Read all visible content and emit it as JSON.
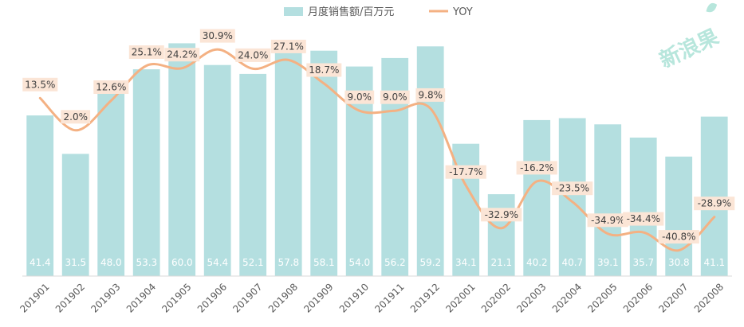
{
  "chart_data": {
    "type": "bar",
    "categories": [
      "201901",
      "201902",
      "201903",
      "201904",
      "201905",
      "201906",
      "201907",
      "201908",
      "201909",
      "201910",
      "201911",
      "201912",
      "202001",
      "202002",
      "202003",
      "202004",
      "202005",
      "202006",
      "202007",
      "202008"
    ],
    "series": [
      {
        "name": "月度销售额/百万元",
        "type": "bar",
        "axis": "left",
        "color": "#b4dfe0",
        "values": [
          41.4,
          31.5,
          48.0,
          53.3,
          60.0,
          54.4,
          52.1,
          57.8,
          58.1,
          54.0,
          56.2,
          59.2,
          34.1,
          21.1,
          40.2,
          40.7,
          39.1,
          35.7,
          30.8,
          41.1
        ],
        "labels": [
          "41.4",
          "31.5",
          "48.0",
          "53.3",
          "60.0",
          "54.4",
          "52.1",
          "57.8",
          "58.1",
          "54.0",
          "56.2",
          "59.2",
          "34.1",
          "21.1",
          "40.2",
          "40.7",
          "39.1",
          "35.7",
          "30.8",
          "41.1"
        ]
      },
      {
        "name": "YOY",
        "type": "line",
        "axis": "right",
        "color": "#f4b183",
        "values": [
          13.5,
          2.0,
          12.6,
          25.1,
          24.2,
          30.9,
          24.0,
          27.1,
          18.7,
          9.0,
          9.0,
          9.8,
          -17.7,
          -32.9,
          -16.2,
          -23.5,
          -34.9,
          -34.4,
          -40.8,
          -28.9
        ],
        "labels": [
          "13.5%",
          "2.0%",
          "12.6%",
          "25.1%",
          "24.2%",
          "30.9%",
          "24.0%",
          "27.1%",
          "18.7%",
          "9.0%",
          "9.0%",
          "9.8%",
          "-17.7%",
          "-32.9%",
          "-16.2%",
          "-23.5%",
          "-34.9%",
          "-34.4%",
          "-40.8%",
          "-28.9%"
        ]
      }
    ],
    "ylim": [
      0,
      65
    ],
    "y2lim": [
      -50,
      40
    ],
    "legend": "top",
    "grid": false
  },
  "watermark": {
    "text": "新浪果"
  }
}
